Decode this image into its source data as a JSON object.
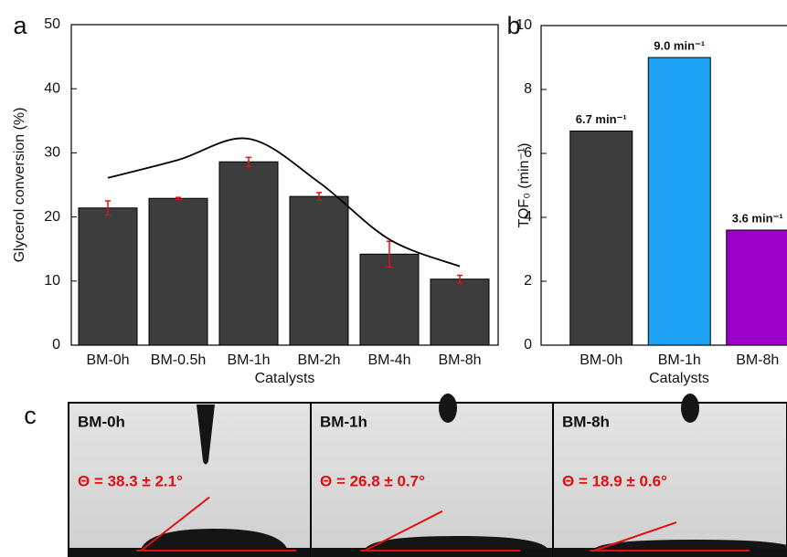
{
  "chart_data": [
    {
      "type": "bar",
      "panel_label": "a",
      "xlabel": "Catalysts",
      "ylabel": "Glycerol conversion (%)",
      "categories": [
        "BM-0h",
        "BM-0.5h",
        "BM-1h",
        "BM-2h",
        "BM-4h",
        "BM-8h"
      ],
      "values": [
        21.4,
        22.9,
        28.6,
        23.2,
        14.2,
        10.3
      ],
      "errors": [
        1.1,
        0.15,
        0.7,
        0.6,
        2.0,
        0.6
      ],
      "color": "#3d3d3d",
      "error_color": "#e01010",
      "trend": {
        "values": [
          26.1,
          28.9,
          32.2,
          25.4,
          16.5,
          12.3
        ],
        "color": "#000000"
      },
      "ylim": [
        0,
        50
      ],
      "yticks": [
        0,
        10,
        20,
        30,
        40,
        50
      ]
    },
    {
      "type": "bar",
      "panel_label": "b",
      "xlabel": "Catalysts",
      "ylabel": "TOF₀ (min⁻¹)",
      "categories": [
        "BM-0h",
        "BM-1h",
        "BM-8h"
      ],
      "values": [
        6.7,
        9.0,
        3.6
      ],
      "value_labels": [
        "6.7 min⁻¹",
        "9.0 min⁻¹",
        "3.6 min⁻¹"
      ],
      "colors": [
        "#3d3d3d",
        "#1ea2f3",
        "#9a00c8"
      ],
      "ylim": [
        0,
        10
      ],
      "yticks": [
        0,
        2,
        4,
        6,
        8,
        10
      ]
    }
  ],
  "panel_c": {
    "label": "c",
    "images": [
      {
        "title": "BM-0h",
        "angle": "Θ = 38.3 ± 2.1°"
      },
      {
        "title": "BM-1h",
        "angle": "Θ = 26.8 ± 0.7°"
      },
      {
        "title": "BM-8h",
        "angle": "Θ = 18.9 ± 0.6°"
      }
    ]
  }
}
